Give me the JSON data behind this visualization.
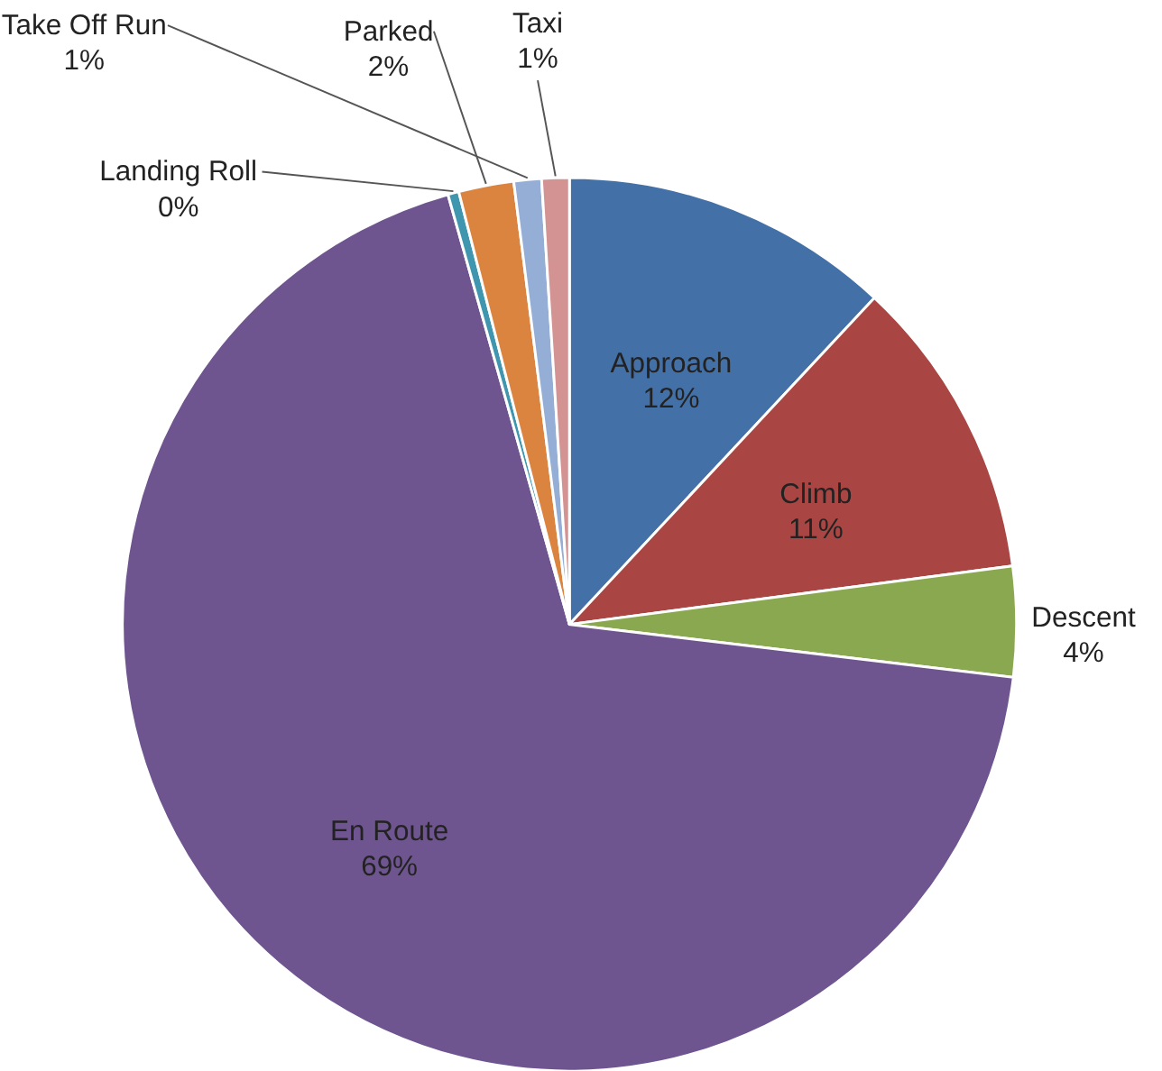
{
  "chart_data": {
    "type": "pie",
    "categories": [
      "Approach",
      "Climb",
      "Descent",
      "En Route",
      "Landing Roll",
      "Parked",
      "Take Off Run",
      "Taxi"
    ],
    "values": [
      12,
      11,
      4,
      69,
      0.4,
      2,
      1,
      1
    ],
    "value_labels": [
      "12%",
      "11%",
      "4%",
      "69%",
      "0%",
      "2%",
      "1%",
      "1%"
    ],
    "colors": [
      "#4470a8",
      "#a94542",
      "#8aa84f",
      "#6f558f",
      "#3f96ae",
      "#db8440",
      "#95aed6",
      "#d49393"
    ]
  }
}
